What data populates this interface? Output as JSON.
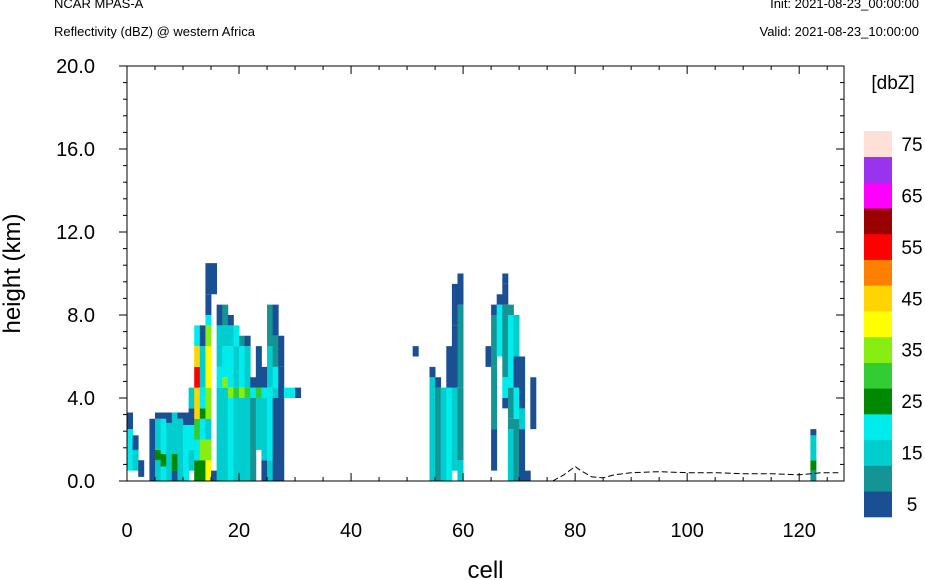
{
  "header": {
    "model": "NCAR MPAS-A",
    "field": "Reflectivity (dBZ) @ western Africa",
    "init": "Init: 2021-08-23_00:00:00",
    "valid": "Valid: 2021-08-23_10:00:00"
  },
  "chart_data": {
    "type": "heatmap",
    "title": "Reflectivity (dBZ) @ western Africa",
    "xlabel": "cell",
    "ylabel": "height (km)",
    "xlim": [
      0,
      128
    ],
    "ylim": [
      0,
      20
    ],
    "x_ticks": [
      "0",
      "20",
      "40",
      "60",
      "80",
      "100",
      "120"
    ],
    "y_ticks": [
      "0.0",
      "4.0",
      "8.0",
      "12.0",
      "16.0",
      "20.0"
    ],
    "colorbar": {
      "title": "[dbZ]",
      "labels": [
        "5",
        "15",
        "25",
        "35",
        "45",
        "55",
        "65",
        "75"
      ],
      "levels": [
        5,
        10,
        15,
        20,
        25,
        30,
        35,
        40,
        45,
        50,
        55,
        60,
        65,
        70,
        75
      ],
      "colors": [
        "#1a4f93",
        "#149494",
        "#00cdcd",
        "#00ecec",
        "#008800",
        "#33cc33",
        "#88ee11",
        "#ffff00",
        "#ffd400",
        "#ff8000",
        "#ff0000",
        "#990000",
        "#ff00ff",
        "#9933ee",
        "#ffe0d8"
      ]
    },
    "terrain": [
      [
        76,
        0
      ],
      [
        78,
        0.3
      ],
      [
        80,
        0.7
      ],
      [
        81,
        0.5
      ],
      [
        83,
        0.2
      ],
      [
        85,
        0.15
      ],
      [
        87,
        0.3
      ],
      [
        90,
        0.4
      ],
      [
        95,
        0.45
      ],
      [
        100,
        0.4
      ],
      [
        105,
        0.4
      ],
      [
        110,
        0.35
      ],
      [
        115,
        0.35
      ],
      [
        120,
        0.3
      ],
      [
        124,
        0.4
      ],
      [
        127,
        0.4
      ]
    ],
    "columns": [
      [
        0.5,
        [
          [
            0.5,
            2.5,
            20
          ],
          [
            2.5,
            3.3,
            5
          ]
        ]
      ],
      [
        1.5,
        [
          [
            0.5,
            1.5,
            15
          ],
          [
            1.5,
            2.2,
            5
          ]
        ]
      ],
      [
        2.5,
        [
          [
            0.2,
            1,
            5
          ]
        ]
      ],
      [
        4.5,
        [
          [
            0,
            3,
            5
          ]
        ]
      ],
      [
        5.5,
        [
          [
            0,
            1,
            15
          ],
          [
            1,
            1.5,
            25
          ],
          [
            1.5,
            3,
            15
          ],
          [
            3,
            3.3,
            5
          ]
        ]
      ],
      [
        6.5,
        [
          [
            0,
            0.7,
            20
          ],
          [
            0.7,
            1.3,
            25
          ],
          [
            1.3,
            3,
            20
          ],
          [
            3,
            3.3,
            5
          ]
        ]
      ],
      [
        7.5,
        [
          [
            0,
            2.8,
            15
          ],
          [
            2.8,
            3.3,
            5
          ]
        ]
      ],
      [
        8.5,
        [
          [
            0,
            0.5,
            5
          ],
          [
            0.5,
            1.3,
            25
          ],
          [
            1.3,
            3.3,
            15
          ]
        ]
      ],
      [
        9.5,
        [
          [
            0,
            3,
            15
          ],
          [
            3,
            3.3,
            5
          ]
        ]
      ],
      [
        10.5,
        [
          [
            0,
            2.7,
            20
          ],
          [
            2.7,
            3.3,
            5
          ]
        ]
      ],
      [
        11.5,
        [
          [
            0.5,
            1.5,
            15
          ],
          [
            1.5,
            2.7,
            20
          ],
          [
            2.7,
            3.5,
            5
          ],
          [
            3.5,
            4.5,
            15
          ]
        ]
      ],
      [
        12.5,
        [
          [
            0,
            1,
            25
          ],
          [
            1,
            2,
            20
          ],
          [
            2,
            3,
            30
          ],
          [
            3,
            4.5,
            45
          ],
          [
            4.5,
            5.5,
            55
          ],
          [
            5.5,
            6.5,
            45
          ],
          [
            6.5,
            7.5,
            20
          ]
        ]
      ],
      [
        13.5,
        [
          [
            0,
            1,
            25
          ],
          [
            1,
            2,
            35
          ],
          [
            2,
            3,
            20
          ],
          [
            3,
            3.5,
            25
          ],
          [
            3.5,
            4.5,
            20
          ],
          [
            4.5,
            6.5,
            15
          ],
          [
            6.5,
            7.5,
            5
          ]
        ]
      ],
      [
        14.5,
        [
          [
            0,
            1,
            40
          ],
          [
            1,
            2,
            35
          ],
          [
            2,
            3,
            15
          ],
          [
            3,
            4.5,
            35
          ],
          [
            4.5,
            6.5,
            40
          ],
          [
            6.5,
            7.5,
            35
          ],
          [
            7.5,
            8,
            20
          ],
          [
            8,
            9,
            5
          ],
          [
            9,
            10.5,
            5
          ]
        ]
      ],
      [
        15.5,
        [
          [
            0,
            0.5,
            5
          ],
          [
            9,
            10.5,
            5
          ]
        ]
      ],
      [
        16.5,
        [
          [
            0,
            4.5,
            15
          ],
          [
            4.5,
            5.5,
            20
          ],
          [
            5.5,
            7.5,
            15
          ],
          [
            7.5,
            8.5,
            5
          ]
        ]
      ],
      [
        17.5,
        [
          [
            0,
            4.5,
            15
          ],
          [
            4.5,
            5,
            35
          ],
          [
            5,
            6.5,
            20
          ],
          [
            6.5,
            7.5,
            15
          ],
          [
            7.5,
            8.5,
            10
          ]
        ]
      ],
      [
        18.5,
        [
          [
            0,
            4,
            20
          ],
          [
            4,
            4.5,
            35
          ],
          [
            4.5,
            6.5,
            20
          ],
          [
            6.5,
            7.5,
            15
          ],
          [
            7.5,
            8,
            5
          ]
        ]
      ],
      [
        19.5,
        [
          [
            0,
            4,
            15
          ],
          [
            4,
            4.5,
            30
          ],
          [
            4.5,
            6.5,
            15
          ],
          [
            6.5,
            7.5,
            20
          ]
        ]
      ],
      [
        20.5,
        [
          [
            0,
            4,
            15
          ],
          [
            4,
            4.5,
            35
          ],
          [
            4.5,
            6.5,
            20
          ],
          [
            6.5,
            7,
            10
          ]
        ]
      ],
      [
        21.5,
        [
          [
            0,
            4,
            15
          ],
          [
            4,
            4.5,
            30
          ],
          [
            4.5,
            6.5,
            15
          ],
          [
            6.5,
            7,
            5
          ]
        ]
      ],
      [
        22.5,
        [
          [
            0,
            4,
            10
          ],
          [
            4,
            4.5,
            20
          ],
          [
            4.5,
            5,
            5
          ]
        ]
      ],
      [
        23.5,
        [
          [
            1.5,
            4,
            15
          ],
          [
            4,
            4.5,
            30
          ],
          [
            4.5,
            6.5,
            5
          ]
        ]
      ],
      [
        24.5,
        [
          [
            0,
            1,
            5
          ],
          [
            1,
            4,
            15
          ],
          [
            4,
            4.5,
            20
          ],
          [
            4.5,
            5.5,
            5
          ]
        ]
      ],
      [
        25.5,
        [
          [
            0,
            1,
            15
          ],
          [
            1,
            4,
            20
          ],
          [
            4,
            4.5,
            20
          ],
          [
            4.5,
            6.5,
            15
          ],
          [
            6.5,
            8.5,
            10
          ]
        ]
      ],
      [
        26.5,
        [
          [
            0,
            4,
            5
          ],
          [
            4,
            4.5,
            15
          ],
          [
            4.5,
            5.5,
            20
          ],
          [
            5.5,
            7,
            10
          ],
          [
            7,
            8.5,
            5
          ]
        ]
      ],
      [
        27.5,
        [
          [
            0,
            5.5,
            5
          ],
          [
            5.5,
            7,
            5
          ]
        ]
      ],
      [
        28.5,
        [
          [
            4,
            4.5,
            20
          ]
        ]
      ],
      [
        29.5,
        [
          [
            4,
            4.5,
            20
          ]
        ]
      ],
      [
        30.5,
        [
          [
            4,
            4.5,
            5
          ]
        ]
      ],
      [
        51.5,
        [
          [
            6,
            6.5,
            5
          ]
        ]
      ],
      [
        54.5,
        [
          [
            0,
            5,
            15
          ],
          [
            5,
            5.5,
            5
          ]
        ]
      ],
      [
        55.5,
        [
          [
            0,
            4.5,
            10
          ],
          [
            4.5,
            5,
            5
          ]
        ]
      ],
      [
        56.5,
        [
          [
            0,
            4.5,
            15
          ]
        ]
      ],
      [
        57.5,
        [
          [
            0,
            4.5,
            20
          ],
          [
            4.5,
            6.5,
            5
          ]
        ]
      ],
      [
        58.5,
        [
          [
            0.5,
            4.5,
            15
          ],
          [
            4.5,
            7.5,
            5
          ],
          [
            7.5,
            9.5,
            5
          ]
        ]
      ],
      [
        59.5,
        [
          [
            0,
            1,
            15
          ],
          [
            1,
            4.5,
            10
          ],
          [
            4.5,
            8.5,
            10
          ],
          [
            8.5,
            10,
            5
          ]
        ]
      ],
      [
        64.5,
        [
          [
            5.5,
            6.5,
            5
          ]
        ]
      ],
      [
        65.5,
        [
          [
            0.5,
            2.5,
            5
          ],
          [
            2.5,
            5.5,
            10
          ],
          [
            5.5,
            8,
            10
          ],
          [
            8,
            8.5,
            5
          ]
        ]
      ],
      [
        66.5,
        [
          [
            6,
            8.5,
            20
          ],
          [
            8.5,
            9,
            5
          ]
        ]
      ],
      [
        67.5,
        [
          [
            3.5,
            4,
            5
          ],
          [
            4,
            5,
            20
          ],
          [
            5,
            8.5,
            10
          ],
          [
            8.5,
            9.5,
            5
          ],
          [
            9.5,
            10,
            5
          ]
        ]
      ],
      [
        68.5,
        [
          [
            0,
            2.5,
            15
          ],
          [
            2.5,
            3,
            10
          ],
          [
            3,
            4.5,
            10
          ],
          [
            4.5,
            8,
            20
          ],
          [
            8,
            8.5,
            10
          ]
        ]
      ],
      [
        69.5,
        [
          [
            0,
            3,
            10
          ],
          [
            3,
            4.5,
            20
          ],
          [
            4.5,
            6,
            5
          ],
          [
            6,
            8,
            15
          ]
        ]
      ],
      [
        70.5,
        [
          [
            0,
            2.5,
            5
          ],
          [
            2.5,
            3.5,
            15
          ],
          [
            3.5,
            6,
            5
          ]
        ]
      ],
      [
        71.5,
        [
          [
            0,
            0.5,
            5
          ]
        ]
      ],
      [
        72.5,
        [
          [
            2.5,
            5,
            5
          ]
        ]
      ],
      [
        122.5,
        [
          [
            0,
            0.5,
            10
          ],
          [
            0.5,
            1,
            25
          ],
          [
            1,
            2.2,
            15
          ],
          [
            2.2,
            2.5,
            5
          ]
        ]
      ]
    ]
  }
}
